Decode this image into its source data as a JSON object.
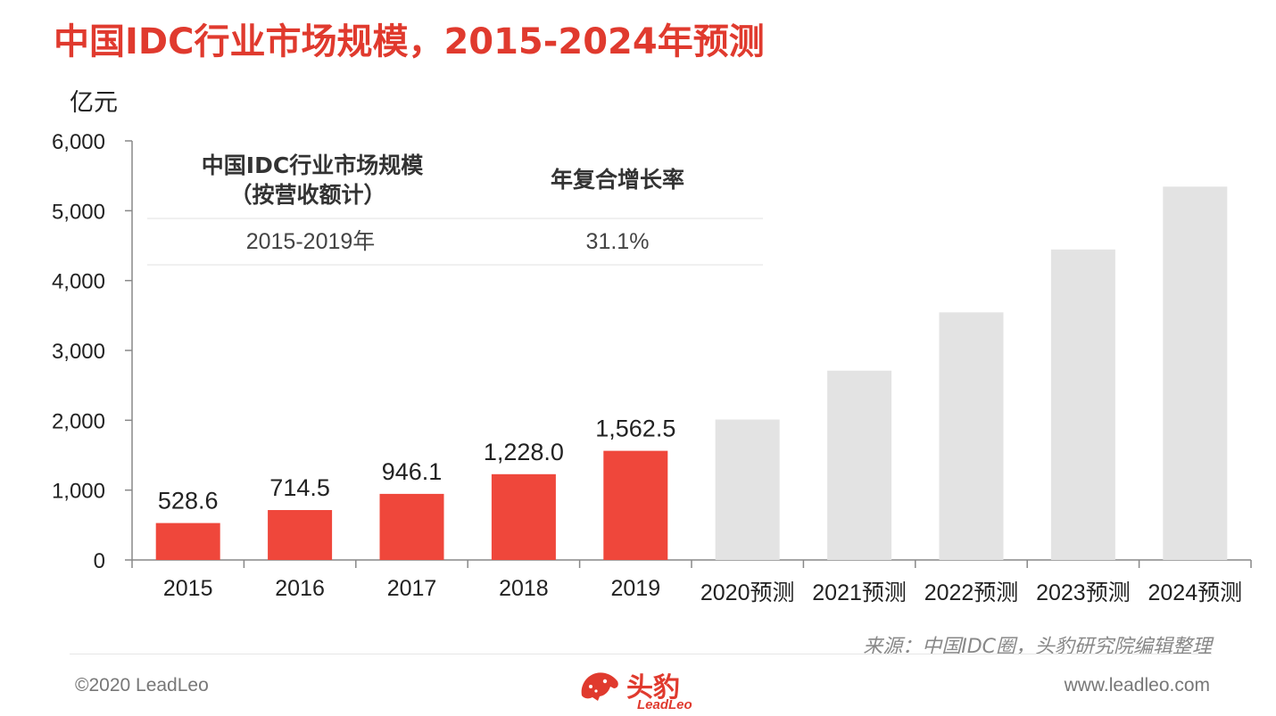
{
  "title": "中国IDC行业市场规模，2015-2024年预测",
  "colors": {
    "accent": "#e03a2e",
    "actual_bar": "#ef473b",
    "forecast_bar": "#e3e3e3"
  },
  "chart_data": {
    "type": "bar",
    "ylabel": "亿元",
    "ylim": [
      0,
      6000
    ],
    "yticks": [
      "0",
      "1,000",
      "2,000",
      "3,000",
      "4,000",
      "5,000",
      "6,000"
    ],
    "ytick_values": [
      0,
      1000,
      2000,
      3000,
      4000,
      5000,
      6000
    ],
    "categories": [
      "2015",
      "2016",
      "2017",
      "2018",
      "2019",
      "2020预测",
      "2021预测",
      "2022预测",
      "2023预测",
      "2024预测"
    ],
    "values": [
      528.6,
      714.5,
      946.1,
      1228.0,
      1562.5,
      2010,
      2710,
      3545,
      4445,
      5345
    ],
    "data_labels": [
      "528.6",
      "714.5",
      "946.1",
      "1,228.0",
      "1,562.5",
      "",
      "",
      "",
      "",
      ""
    ],
    "forecast": [
      false,
      false,
      false,
      false,
      false,
      true,
      true,
      true,
      true,
      true
    ],
    "grid": false,
    "inset_table": {
      "headers": [
        "中国IDC行业市场规模\n（按营收额计）",
        "年复合增长率"
      ],
      "header_line1": "中国IDC行业市场规模",
      "header_line2": "（按营收额计）",
      "header_col2": "年复合增长率",
      "rows": [
        [
          "2015-2019年",
          "31.1%"
        ]
      ]
    }
  },
  "footer": {
    "source": "来源：中国IDC圈，头豹研究院编辑整理",
    "copyright": "©2020 LeadLeo",
    "website": "www.leadleo.com",
    "logo_cn": "头豹",
    "logo_en": "LeadLeo",
    "logo_icon": "leopard-head-icon"
  }
}
